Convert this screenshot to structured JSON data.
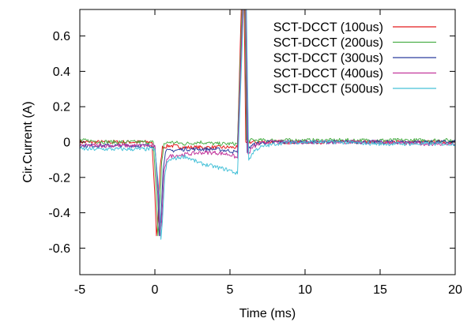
{
  "chart_data": {
    "type": "line",
    "title": "",
    "xlabel": "Time (ms)",
    "ylabel": "Cir.Current (A)",
    "xlim": [
      -5,
      20
    ],
    "ylim": [
      -0.75,
      0.75
    ],
    "xticks": [
      -5,
      0,
      5,
      10,
      15,
      20
    ],
    "xtick_labels": [
      "-5",
      "0",
      "5",
      "10",
      "15",
      "20"
    ],
    "yticks": [
      -0.6,
      -0.4,
      -0.2,
      0,
      0.2,
      0.4,
      0.6
    ],
    "ytick_labels": [
      "-0.6",
      "-0.4",
      "-0.2",
      "0",
      "0.2",
      "0.4",
      "0.6"
    ],
    "grid": false,
    "legend_position": "top-right",
    "series": [
      {
        "name": "SCT-DCCT (100us)",
        "color": "#e41a1c",
        "x": [
          -5,
          -3,
          -1,
          -0.2,
          0,
          0.1,
          0.2,
          0.35,
          0.5,
          1,
          2,
          3,
          4,
          5,
          5.5,
          5.75,
          5.85,
          5.95,
          6.05,
          6.2,
          6.5,
          7,
          8,
          10,
          12,
          15,
          18,
          20
        ],
        "y": [
          0.0,
          0.0,
          0.0,
          0.0,
          -0.3,
          -0.53,
          -0.45,
          -0.15,
          -0.03,
          -0.02,
          -0.03,
          -0.03,
          -0.03,
          -0.03,
          -0.03,
          0.75,
          0.75,
          0.75,
          -0.01,
          0.0,
          0.0,
          0.0,
          0.0,
          0.0,
          0.0,
          0.0,
          0.0,
          0.0
        ]
      },
      {
        "name": "SCT-DCCT (200us)",
        "color": "#4daf4a",
        "x": [
          -5,
          -3,
          -1,
          -0.1,
          0.1,
          0.2,
          0.3,
          0.45,
          0.6,
          1,
          2,
          3,
          4,
          5,
          5.5,
          5.8,
          5.9,
          6.0,
          6.1,
          6.3,
          6.6,
          7,
          8,
          10,
          12,
          15,
          18,
          20
        ],
        "y": [
          0.01,
          0.0,
          0.0,
          0.0,
          -0.3,
          -0.53,
          -0.45,
          -0.12,
          -0.01,
          0.0,
          -0.01,
          0.0,
          -0.01,
          -0.01,
          -0.01,
          0.75,
          0.75,
          0.75,
          0.01,
          0.01,
          0.01,
          0.01,
          0.01,
          0.01,
          0.01,
          0.01,
          0.01,
          0.01
        ]
      },
      {
        "name": "SCT-DCCT (300us)",
        "color": "#2c3e9e",
        "x": [
          -5,
          -3,
          -1,
          0,
          0.2,
          0.3,
          0.4,
          0.55,
          0.7,
          1,
          2,
          3,
          4,
          5,
          5.5,
          5.85,
          5.95,
          6.05,
          6.15,
          6.4,
          6.8,
          7.5,
          8,
          10,
          12,
          15,
          18,
          20
        ],
        "y": [
          -0.02,
          -0.02,
          -0.02,
          -0.02,
          -0.3,
          -0.53,
          -0.45,
          -0.15,
          -0.05,
          -0.05,
          -0.04,
          -0.04,
          -0.04,
          -0.05,
          -0.06,
          0.75,
          0.75,
          0.75,
          -0.05,
          -0.02,
          -0.01,
          0.0,
          0.0,
          0.0,
          0.0,
          0.0,
          0.0,
          0.0
        ]
      },
      {
        "name": "SCT-DCCT (400us)",
        "color": "#c2369c",
        "x": [
          -5,
          -3,
          -1,
          0,
          0.25,
          0.35,
          0.45,
          0.6,
          0.8,
          1,
          2,
          3,
          4,
          5,
          5.5,
          5.85,
          5.95,
          6.05,
          6.2,
          6.5,
          7,
          7.5,
          8,
          10,
          12,
          15,
          18,
          20
        ],
        "y": [
          -0.02,
          -0.02,
          -0.02,
          -0.02,
          -0.3,
          -0.53,
          -0.45,
          -0.18,
          -0.09,
          -0.08,
          -0.07,
          -0.06,
          -0.06,
          -0.07,
          -0.09,
          0.75,
          0.75,
          0.75,
          -0.07,
          -0.03,
          -0.01,
          0.0,
          0.0,
          0.0,
          0.0,
          0.0,
          -0.01,
          -0.01
        ]
      },
      {
        "name": "SCT-DCCT (500us)",
        "color": "#46c1d8",
        "x": [
          -5,
          -3,
          -1,
          0,
          0.3,
          0.4,
          0.5,
          0.65,
          0.8,
          1,
          2,
          3,
          4,
          5,
          5.5,
          5.9,
          6.0,
          6.1,
          6.25,
          6.6,
          7,
          8,
          9,
          10,
          12,
          15,
          18,
          20
        ],
        "y": [
          -0.04,
          -0.04,
          -0.04,
          -0.04,
          -0.3,
          -0.55,
          -0.45,
          -0.2,
          -0.12,
          -0.1,
          -0.08,
          -0.12,
          -0.14,
          -0.16,
          -0.18,
          0.75,
          0.75,
          0.75,
          -0.1,
          -0.05,
          -0.03,
          -0.01,
          0.0,
          0.0,
          0.0,
          -0.01,
          -0.01,
          -0.01
        ]
      }
    ]
  }
}
